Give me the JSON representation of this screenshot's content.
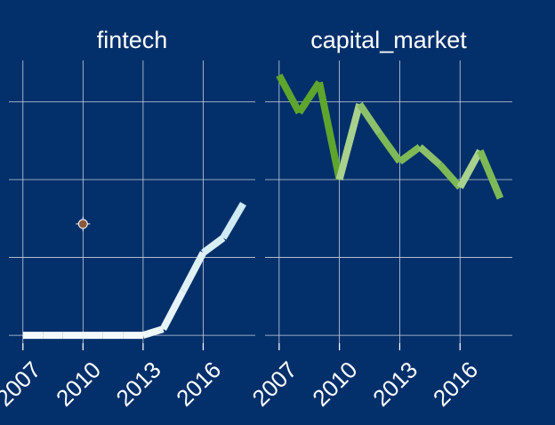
{
  "chart_data": [
    {
      "type": "line",
      "title": "fintech",
      "x": [
        2007,
        2008,
        2009,
        2010,
        2011,
        2012,
        2013,
        2014,
        2015,
        2016,
        2017,
        2018
      ],
      "values": [
        0,
        0,
        0,
        0,
        0,
        0,
        0,
        0.08,
        0.57,
        1.06,
        1.25,
        1.69
      ],
      "segment_colors": [
        "#f4f9fc",
        "#f4f9fc",
        "#f4f9fc",
        "#f4f9fc",
        "#f4f9fc",
        "#f4f9fc",
        "#eef7fa",
        "#e6f3f8",
        "#e0f1f6",
        "#d8eef5",
        "#cfeaf2"
      ],
      "marker": {
        "x": 2010,
        "y": 1.43,
        "color": "#8b5a3c"
      },
      "xlim": [
        2006.3,
        2018.6
      ],
      "ylim": [
        -0.17,
        3.53
      ],
      "xticks": [
        2007,
        2010,
        2013,
        2016
      ],
      "yticks": [
        0,
        1,
        2,
        3
      ],
      "grid": true
    },
    {
      "type": "line",
      "title": "capital_market",
      "x": [
        2007,
        2008,
        2009,
        2010,
        2011,
        2012,
        2013,
        2014,
        2015,
        2016,
        2017,
        2018
      ],
      "values": [
        3.34,
        2.86,
        3.25,
        2.0,
        2.97,
        2.59,
        2.23,
        2.42,
        2.19,
        1.9,
        2.37,
        1.76
      ],
      "segment_colors": [
        "#5ea52e",
        "#5ea52e",
        "#5ea52e",
        "#a9d18e",
        "#8cc06a",
        "#7dba57",
        "#7dba57",
        "#8cc06a",
        "#7dba57",
        "#a9d18e",
        "#7dba57"
      ],
      "xlim": [
        2006.3,
        2018.6
      ],
      "ylim": [
        -0.17,
        3.53
      ],
      "xticks": [
        2007,
        2010,
        2013,
        2016
      ],
      "yticks": [
        0,
        1,
        2,
        3
      ],
      "grid": true
    }
  ]
}
